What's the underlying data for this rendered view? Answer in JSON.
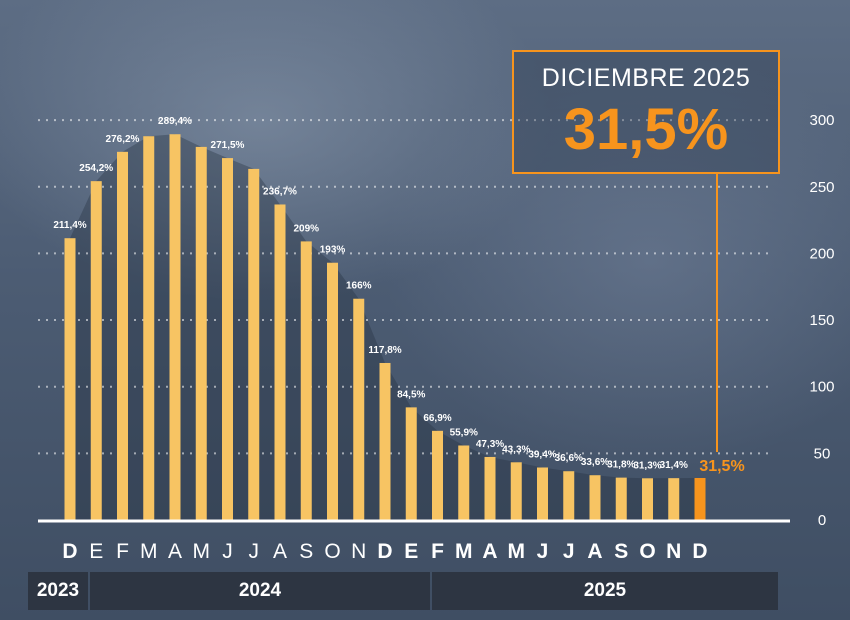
{
  "chart_data": {
    "type": "bar",
    "categories": [
      "D",
      "E",
      "F",
      "M",
      "A",
      "M",
      "J",
      "J",
      "A",
      "S",
      "O",
      "N",
      "D",
      "E",
      "F",
      "M",
      "A",
      "M",
      "J",
      "J",
      "A",
      "S",
      "O",
      "N",
      "D"
    ],
    "values": [
      211.4,
      254.2,
      276.2,
      287.9,
      289.4,
      279.9,
      271.5,
      263.4,
      236.7,
      209,
      193,
      166,
      117.8,
      84.5,
      66.9,
      55.9,
      47.3,
      43.3,
      39.4,
      36.6,
      33.6,
      31.8,
      31.3,
      31.4,
      31.5
    ],
    "data_labels": [
      "211,4%",
      "254,2%",
      "276,2%",
      "",
      "289,4%",
      "",
      "271,5%",
      "",
      "236,7%",
      "209%",
      "193%",
      "166%",
      "117,8%",
      "84,5%",
      "66,9%",
      "55,9%",
      "47,3%",
      "43,3%",
      "39,4%",
      "36,6%",
      "33,6%",
      "31,8%",
      "31,3%",
      "31,4%",
      "31,5%"
    ],
    "y_ticks": [
      "0",
      "50",
      "100",
      "150",
      "200",
      "250",
      "300"
    ],
    "ylim": [
      0,
      300
    ],
    "grid": true,
    "years": [
      {
        "label": "2023"
      },
      {
        "label": "2024"
      },
      {
        "label": "2025"
      }
    ],
    "highlight_index": 24
  },
  "callout": {
    "title": "DICIEMBRE 2025",
    "value": "31,5%"
  },
  "colors": {
    "bar": "#f7c463",
    "highlight": "#f7941d",
    "year_bar": "#2d3542",
    "text": "#ffffff"
  }
}
